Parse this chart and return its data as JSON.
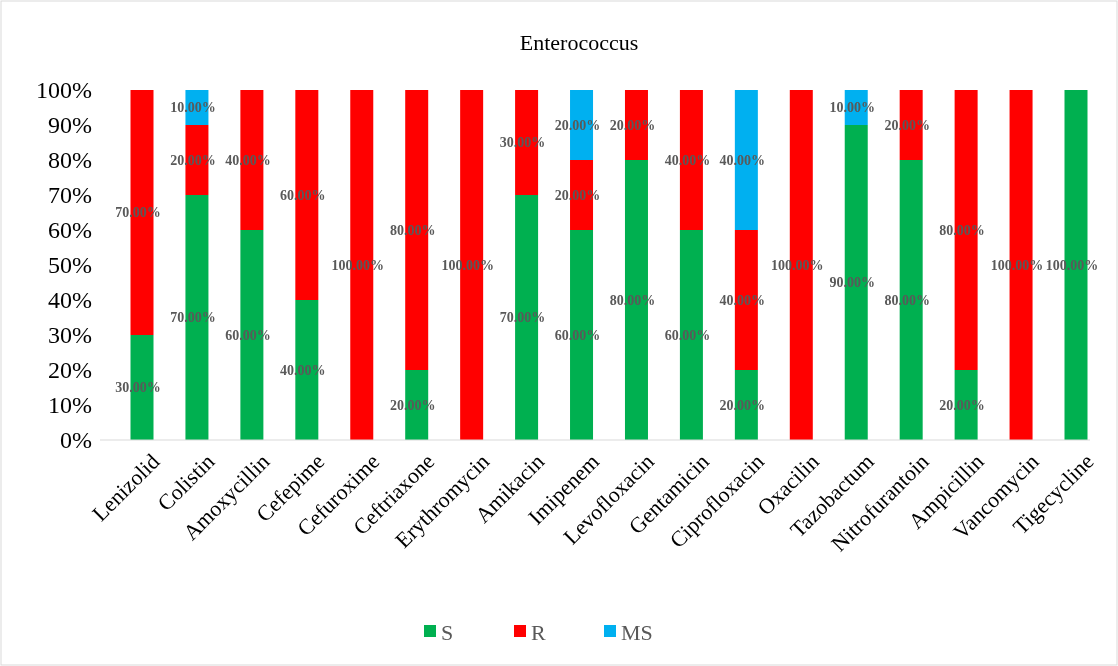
{
  "chart_data": {
    "type": "bar",
    "title": "Enterococcus",
    "stacked": true,
    "legend": "bottom",
    "grid": false,
    "categories": [
      "Lenizolid",
      "Colistin",
      "Amoxycillin",
      "Cefepime",
      "Cefuroxime",
      "Ceftriaxone",
      "Erythromycin",
      "Amikacin",
      "Imipenem",
      "Levofloxacin",
      "Gentamicin",
      "Ciprofloxacin",
      "Oxacilin",
      "Tazobactum",
      "Nitrofurantoin",
      "Ampicillin",
      "Vancomycin",
      "Tigecycline"
    ],
    "ylim": [
      0,
      100
    ],
    "yticks": [
      {
        "value": 0,
        "label": "0%"
      },
      {
        "value": 10,
        "label": "10%"
      },
      {
        "value": 20,
        "label": "20%"
      },
      {
        "value": 30,
        "label": "30%"
      },
      {
        "value": 40,
        "label": "40%"
      },
      {
        "value": 50,
        "label": "50%"
      },
      {
        "value": 60,
        "label": "60%"
      },
      {
        "value": 70,
        "label": "70%"
      },
      {
        "value": 80,
        "label": "80%"
      },
      {
        "value": 90,
        "label": "90%"
      },
      {
        "value": 100,
        "label": "100%"
      }
    ],
    "series": [
      {
        "name": "S",
        "color": "#00b050",
        "values": [
          30,
          70,
          60,
          40,
          0,
          20,
          0,
          70,
          60,
          80,
          60,
          20,
          0,
          90,
          80,
          20,
          0,
          100
        ],
        "value_labels": [
          "30.00%",
          "70.00%",
          "60.00%",
          "40.00%",
          null,
          "20.00%",
          null,
          "70.00%",
          "60.00%",
          "80.00%",
          "60.00%",
          "20.00%",
          null,
          "90.00%",
          "80.00%",
          "20.00%",
          null,
          "100.00%"
        ]
      },
      {
        "name": "R",
        "color": "#ff0000",
        "values": [
          70,
          20,
          40,
          60,
          100,
          80,
          100,
          30,
          20,
          20,
          40,
          40,
          100,
          0,
          20,
          80,
          100,
          0
        ],
        "value_labels": [
          "70.00%",
          "20.00%",
          "40.00%",
          "60.00%",
          "100.00%",
          "80.00%",
          "100.00%",
          "30.00%",
          "20.00%",
          "20.00%",
          "40.00%",
          "40.00%",
          "100.00%",
          null,
          "20.00%",
          "80.00%",
          "100.00%",
          null
        ]
      },
      {
        "name": "MS",
        "color": "#00b0f0",
        "values": [
          0,
          10,
          0,
          0,
          0,
          0,
          0,
          0,
          20,
          0,
          0,
          40,
          0,
          10,
          0,
          0,
          0,
          0
        ],
        "value_labels": [
          null,
          "10.00%",
          null,
          null,
          null,
          null,
          null,
          null,
          "20.00%",
          null,
          null,
          "40.00%",
          null,
          "10.00%",
          null,
          null,
          null,
          null
        ]
      }
    ]
  }
}
